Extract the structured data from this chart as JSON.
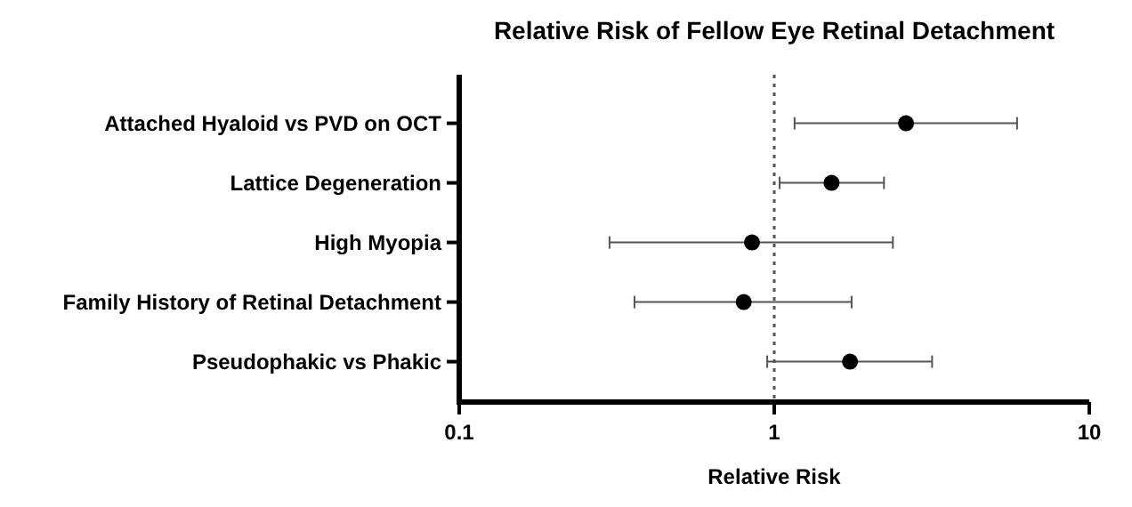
{
  "chart_data": {
    "type": "scatter",
    "title": "Relative Risk of Fellow Eye Retinal Detachment",
    "xlabel": "Relative Risk",
    "categories": [
      "Attached Hyaloid vs PVD on OCT",
      "Lattice Degeneration",
      "High Myopia",
      "Family History of Retinal Detachment",
      "Pseudophakic vs Phakic"
    ],
    "values": [
      2.62,
      1.52,
      0.85,
      0.8,
      1.74
    ],
    "errors": [
      [
        1.16,
        5.9
      ],
      [
        1.04,
        2.23
      ],
      [
        0.3,
        2.38
      ],
      [
        0.36,
        1.76
      ],
      [
        0.95,
        3.17
      ]
    ],
    "color": "#000000",
    "marker": "circle",
    "orientation": "horizontal",
    "log": "x",
    "xlim": [
      0.1,
      10
    ],
    "xticks": [
      0.1,
      1,
      10
    ],
    "ref_lines": [
      {
        "axis": "x",
        "value": 1,
        "line_style": "dotted",
        "color": "#555555"
      }
    ],
    "grid": false
  }
}
